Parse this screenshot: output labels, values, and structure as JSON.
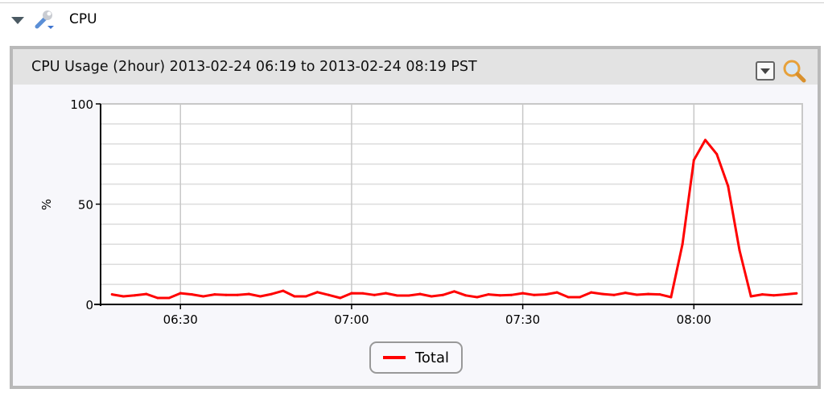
{
  "section": {
    "title": "CPU",
    "icon": "wrench-icon"
  },
  "panel": {
    "title": "CPU Usage (2hour) 2013-02-24 06:19 to 2013-02-24 08:19 PST",
    "menu_icon": "dropdown-icon",
    "zoom_icon": "magnifier-icon"
  },
  "chart_data": {
    "type": "line",
    "title": "",
    "xlabel": "",
    "ylabel": "%",
    "ylim": [
      0,
      100
    ],
    "yticks": [
      0,
      50,
      100
    ],
    "ytick_labels": [
      "0",
      "50",
      "100"
    ],
    "xlim": [
      "06:16",
      "08:19"
    ],
    "xticks": [
      "06:30",
      "07:00",
      "07:30",
      "08:00"
    ],
    "grid": true,
    "legend": "bottom-center",
    "x_interval_minutes": 2,
    "x_start": "06:18",
    "series": [
      {
        "name": "Total",
        "color": "#ff0000",
        "values": [
          5,
          4,
          4.5,
          5.2,
          3.2,
          3.2,
          5.6,
          5,
          4,
          5,
          4.7,
          4.7,
          5.2,
          4,
          5.2,
          6.8,
          4,
          4,
          6.1,
          4.7,
          3.2,
          5.6,
          5.5,
          4.7,
          5.6,
          4.4,
          4.4,
          5.2,
          4,
          4.7,
          6.5,
          4.5,
          3.6,
          5,
          4.5,
          4.7,
          5.6,
          4.7,
          5,
          6,
          3.6,
          3.6,
          6,
          5.2,
          4.7,
          5.8,
          4.8,
          5.2,
          5,
          3.6,
          30,
          72,
          82,
          75,
          59,
          27,
          4,
          5,
          4.5,
          5,
          5.5
        ]
      }
    ]
  }
}
